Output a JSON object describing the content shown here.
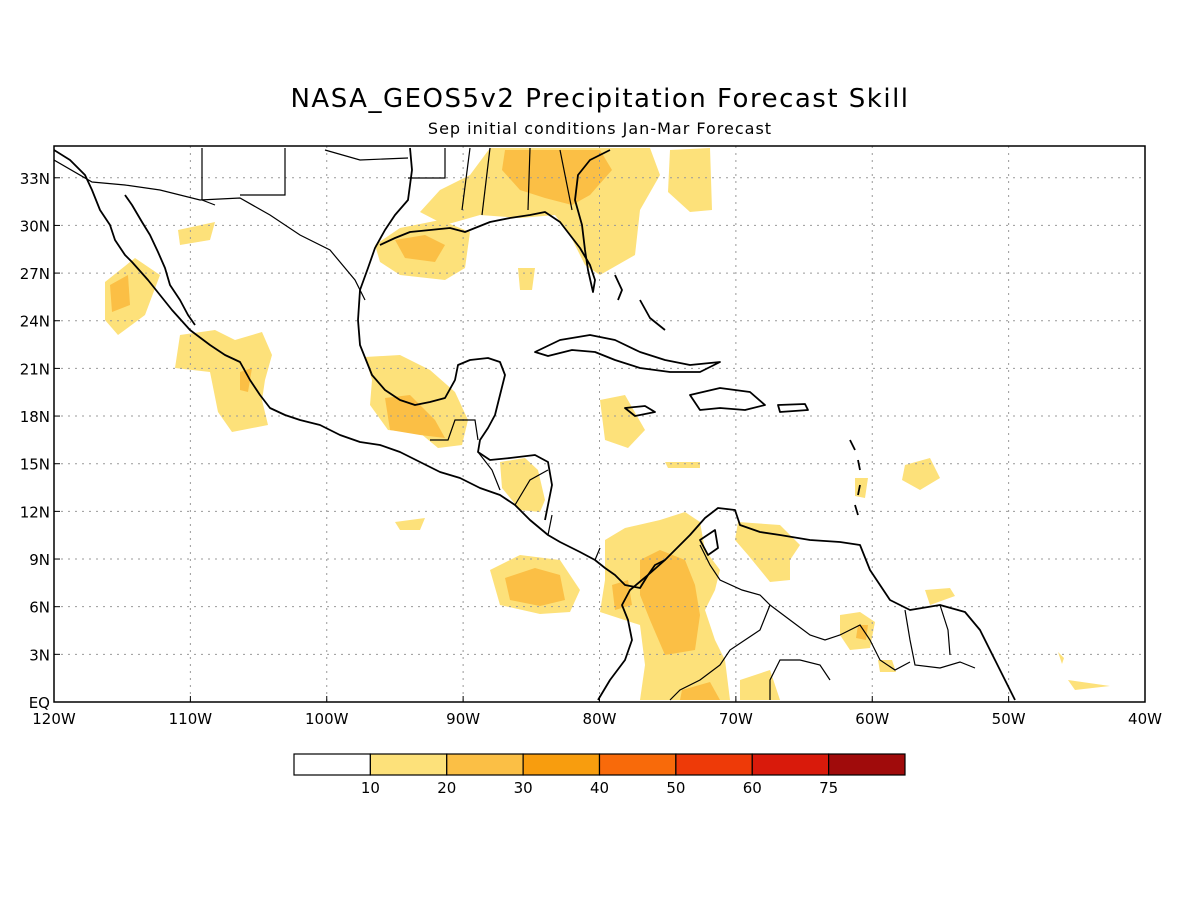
{
  "title": "NASA_GEOS5v2 Precipitation Forecast Skill",
  "subtitle": "Sep initial conditions  Jan-Mar Forecast",
  "map": {
    "lon_labels": [
      "120W",
      "110W",
      "100W",
      "90W",
      "80W",
      "70W",
      "60W",
      "50W",
      "40W"
    ],
    "lat_labels": [
      "EQ",
      "3N",
      "6N",
      "9N",
      "12N",
      "15N",
      "18N",
      "21N",
      "24N",
      "27N",
      "30N",
      "33N"
    ],
    "lon_range": [
      -120,
      -40
    ],
    "lat_range": [
      0,
      35
    ],
    "grid": "dotted"
  },
  "colorbar": {
    "levels": [
      "10",
      "20",
      "30",
      "40",
      "50",
      "60",
      "75"
    ],
    "colors": [
      "#ffffff",
      "#fde17a",
      "#fbbf45",
      "#f89d0e",
      "#f86a0a",
      "#ee3a08",
      "#d91a0b",
      "#a00b0b"
    ]
  }
}
